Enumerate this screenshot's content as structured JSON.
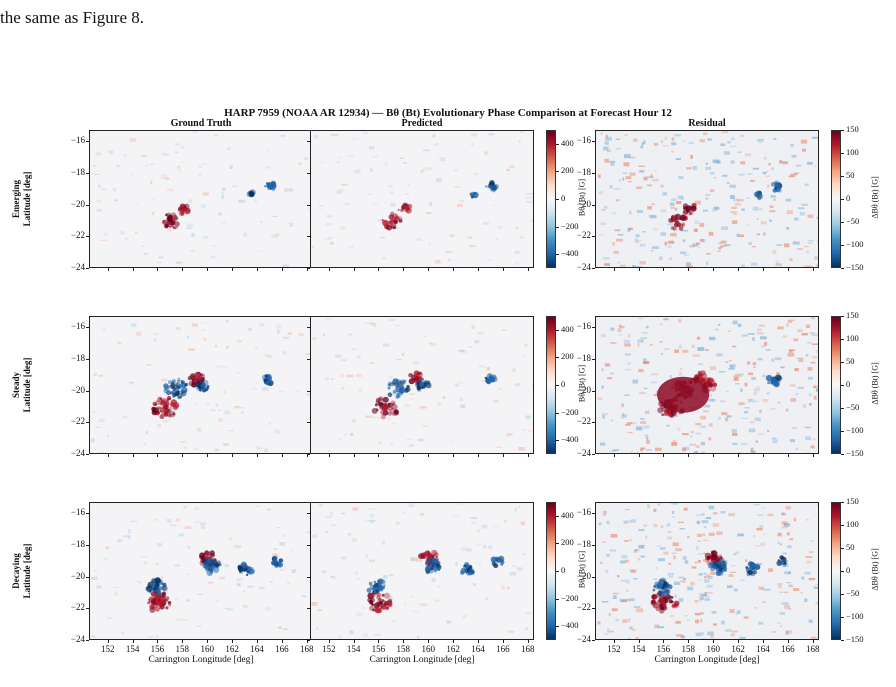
{
  "intro": {
    "line1": "",
    "line2": "the same as Figure 8."
  },
  "figure": {
    "suptitle": "HARP 7959 (NOAA AR 12934) — Bθ (Bt) Evolutionary Phase Comparison at Forecast Hour 12",
    "columns": [
      "Ground Truth",
      "Predicted",
      "Residual"
    ],
    "rows": [
      {
        "label1": "Emerging",
        "label2": "Latitude [deg]"
      },
      {
        "label1": "Steady",
        "label2": "Latitude [deg]"
      },
      {
        "label1": "Decaying",
        "label2": "Latitude [deg]"
      }
    ],
    "xlabel": "Carrington Longitude [deg]",
    "cbar_label_field": "Bθ (Bt) [G]",
    "cbar_label_residual": "ΔBθ (Bt) [G]",
    "colormap": "RdBu_r",
    "colors": {
      "pos_dark": "#67001f",
      "pos": "#b2182b",
      "neutral": "#f7f7f7",
      "neg": "#2166ac",
      "neg_dark": "#053061"
    }
  },
  "chart_data": {
    "type": "heatmap",
    "title": "HARP 7959 (NOAA AR 12934) — Bθ (Bt) Evolutionary Phase Comparison at Forecast Hour 12",
    "xlabel": "Carrington Longitude [deg]",
    "ylabel": "Latitude [deg]",
    "xlim": [
      150.5,
      168.5
    ],
    "ylim": [
      -24,
      -15.3
    ],
    "x_ticks": [
      152,
      154,
      156,
      158,
      160,
      162,
      164,
      166,
      168
    ],
    "y_ticks": [
      -16,
      -18,
      -20,
      -22,
      -24
    ],
    "field_clim": [
      -500,
      500
    ],
    "field_cbar_ticks": [
      400,
      200,
      0,
      -200,
      -400
    ],
    "residual_clim": [
      -150,
      150
    ],
    "residual_cbar_ticks": [
      150,
      100,
      50,
      0,
      -50,
      -100,
      -150
    ],
    "grid": false,
    "panels": [
      {
        "row": "Emerging",
        "column": "Ground Truth"
      },
      {
        "row": "Emerging",
        "column": "Predicted"
      },
      {
        "row": "Emerging",
        "column": "Residual"
      },
      {
        "row": "Steady",
        "column": "Ground Truth"
      },
      {
        "row": "Steady",
        "column": "Predicted"
      },
      {
        "row": "Steady",
        "column": "Residual"
      },
      {
        "row": "Decaying",
        "column": "Ground Truth"
      },
      {
        "row": "Decaying",
        "column": "Predicted"
      },
      {
        "row": "Decaying",
        "column": "Residual"
      }
    ]
  }
}
